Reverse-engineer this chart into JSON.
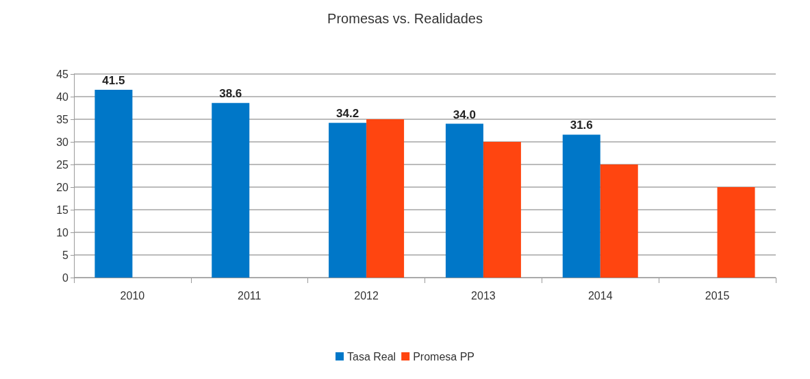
{
  "chart_data": {
    "type": "bar",
    "title": "Promesas vs. Realidades",
    "categories": [
      "2010",
      "2011",
      "2012",
      "2013",
      "2014",
      "2015"
    ],
    "series": [
      {
        "name": "Tasa Real",
        "color": "#0077c8",
        "values": [
          41.5,
          38.6,
          34.2,
          34.0,
          31.6,
          null
        ],
        "value_labels": [
          "41.5",
          "38.6",
          "34.2",
          "34.0",
          "31.6",
          null
        ]
      },
      {
        "name": "Promesa PP",
        "color": "#ff4510",
        "values": [
          null,
          null,
          35,
          30,
          25,
          20
        ]
      }
    ],
    "ylim": [
      0,
      45
    ],
    "yticks": [
      0,
      5,
      10,
      15,
      20,
      25,
      30,
      35,
      40,
      45
    ],
    "grid": "y",
    "legend": "bottom"
  }
}
